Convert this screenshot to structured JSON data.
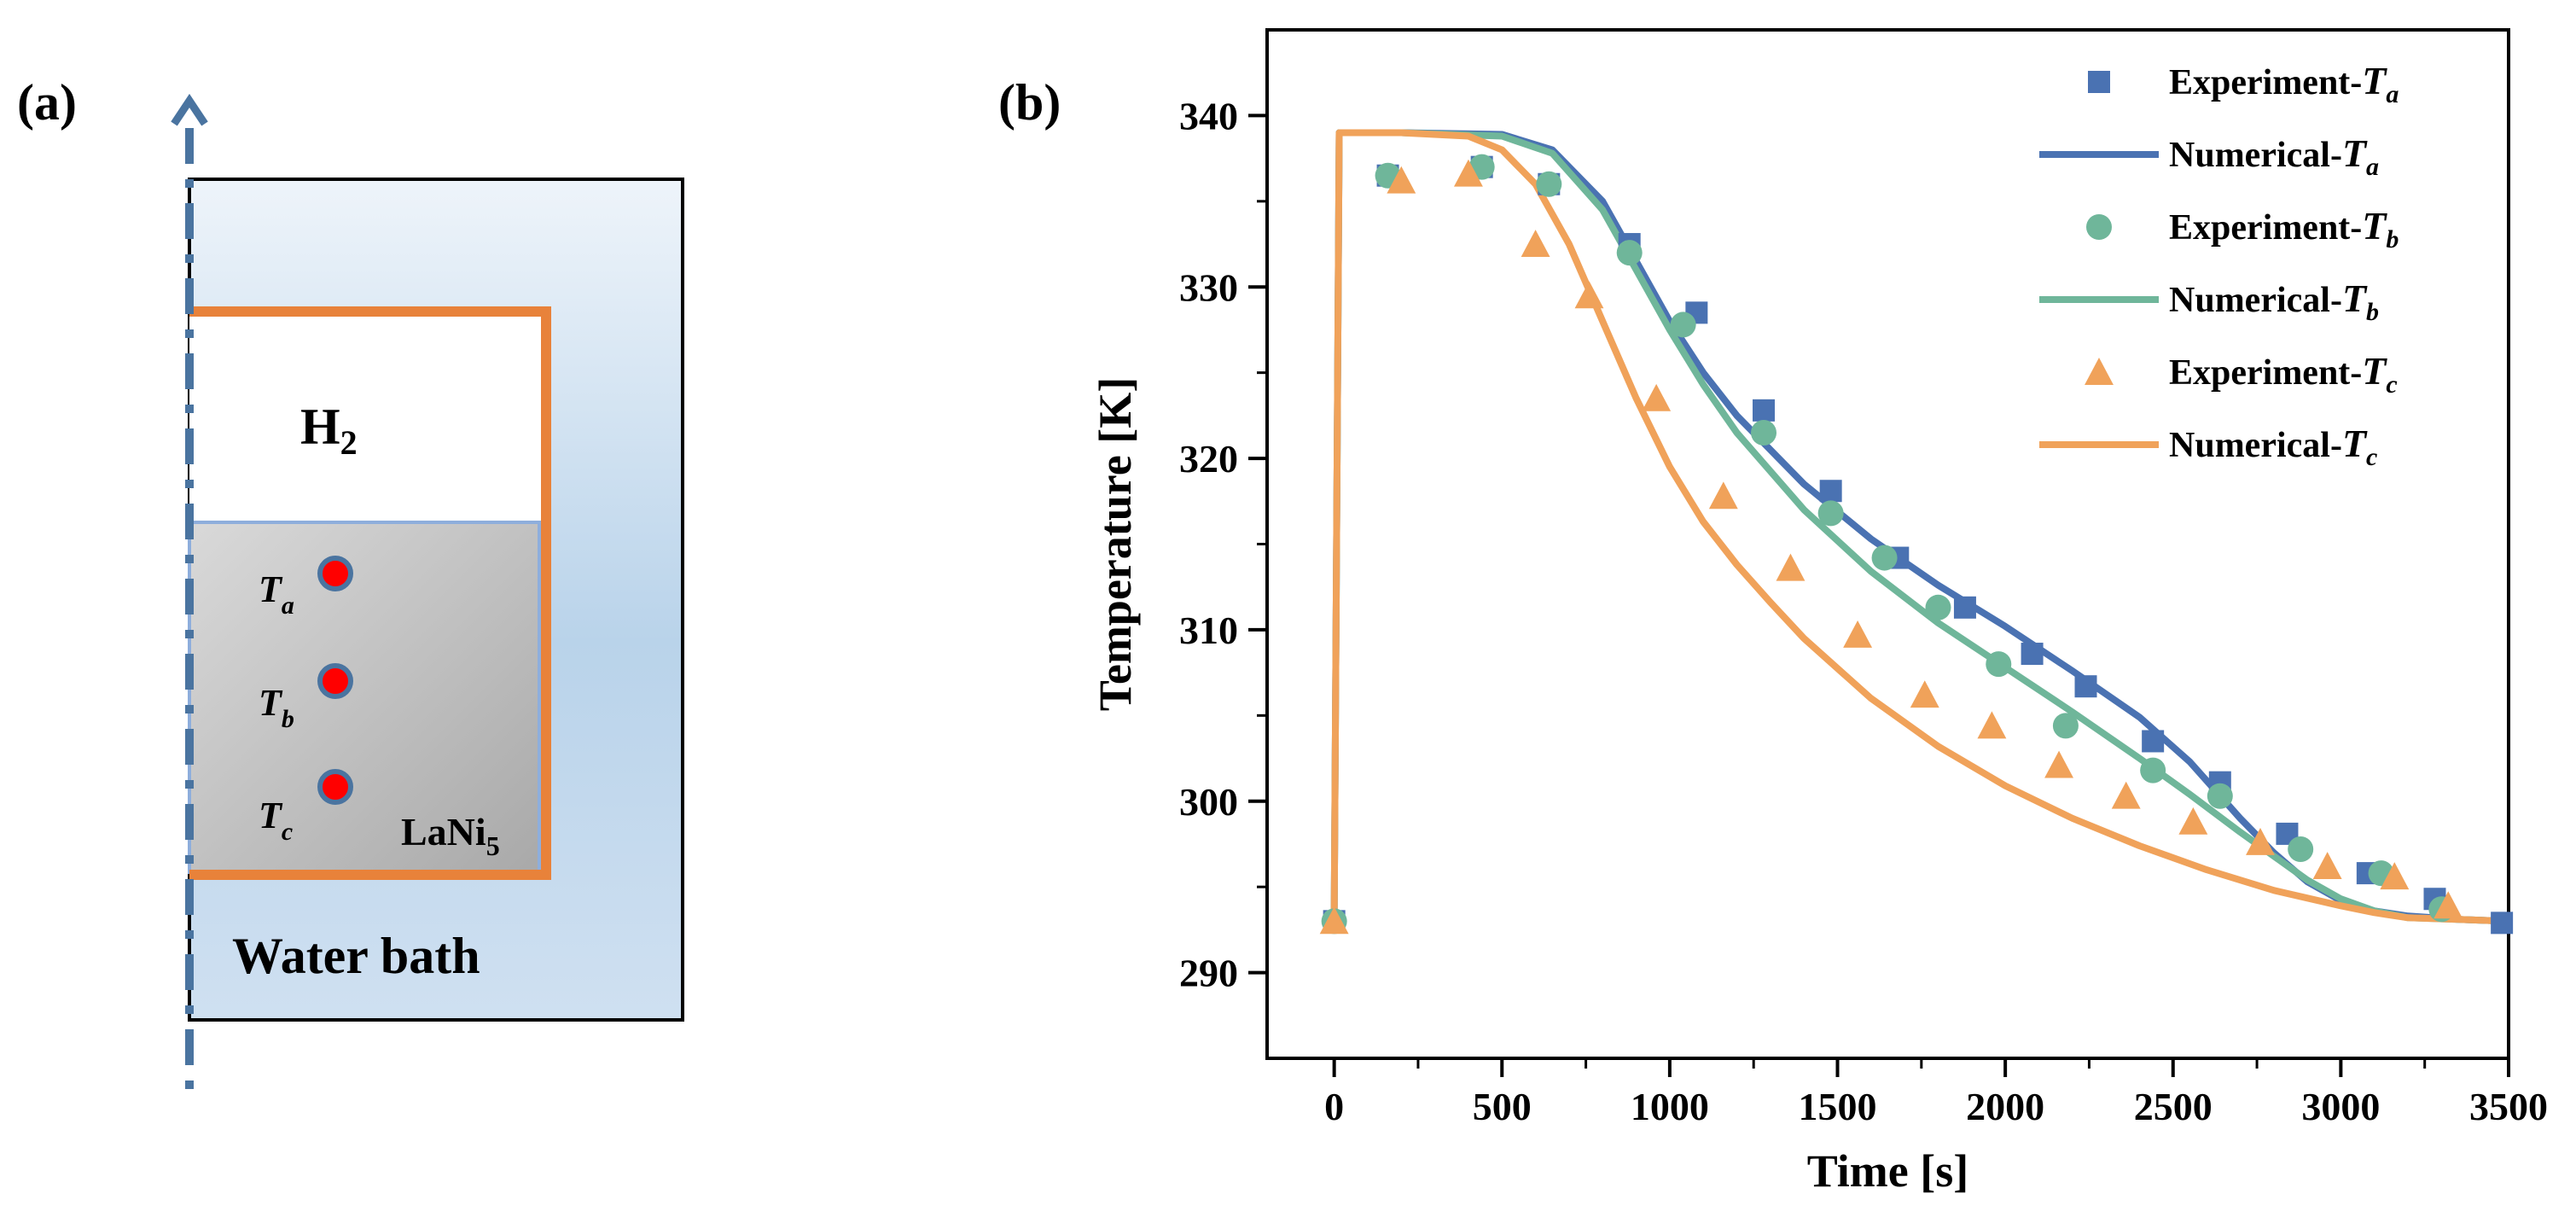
{
  "panel_a": {
    "label": "(a)",
    "gas": "H",
    "gas_sub": "2",
    "alloy": "LaNi",
    "alloy_sub": "5",
    "bath": "Water bath",
    "sensors": [
      {
        "sym": "T",
        "sub": "a"
      },
      {
        "sym": "T",
        "sub": "b"
      },
      {
        "sym": "T",
        "sub": "c"
      }
    ],
    "colors": {
      "vessel": "#e8823a",
      "axis": "#4a74a0",
      "sensor_fill": "#ff0000",
      "sensor_ring": "#4a74a0"
    }
  },
  "panel_b": {
    "label": "(b)"
  },
  "chart_data": {
    "type": "line+scatter",
    "xlabel": "Time [s]",
    "ylabel": "Temperature [K]",
    "xlim": [
      -200,
      3500
    ],
    "ylim": [
      285,
      345
    ],
    "xticks": [
      0,
      500,
      1000,
      1500,
      2000,
      2500,
      3000,
      3500
    ],
    "yticks": [
      290,
      300,
      310,
      320,
      330,
      340
    ],
    "grid": false,
    "legend_position": "top-right",
    "series": [
      {
        "name": "Experiment-",
        "sub": "a",
        "kind": "scatter",
        "marker": "square",
        "color": "#4a72b2",
        "x": [
          0,
          160,
          440,
          640,
          880,
          1080,
          1280,
          1480,
          1680,
          1880,
          2080,
          2240,
          2440,
          2640,
          2840,
          3080,
          3280,
          3480
        ],
        "y": [
          293,
          336.5,
          337,
          336,
          332.5,
          328.5,
          322.8,
          318.1,
          314.2,
          311.3,
          308.6,
          306.7,
          303.5,
          301.1,
          298.1,
          295.8,
          294.3,
          292.9
        ]
      },
      {
        "name": "Numerical-",
        "sub": "a",
        "kind": "line",
        "color": "#4a72b2",
        "x": [
          0,
          15,
          200,
          500,
          650,
          800,
          900,
          1000,
          1100,
          1200,
          1400,
          1600,
          1800,
          2000,
          2200,
          2400,
          2550,
          2700,
          2800,
          2900,
          3000,
          3100,
          3200,
          3350,
          3500
        ],
        "y": [
          293,
          339,
          339,
          338.9,
          338,
          335,
          331.5,
          328,
          325,
          322.5,
          318.5,
          315.3,
          312.6,
          310.2,
          307.6,
          304.9,
          302.3,
          299,
          297,
          295.3,
          294.2,
          293.6,
          293.3,
          293.1,
          293
        ]
      },
      {
        "name": "Experiment-",
        "sub": "b",
        "kind": "scatter",
        "marker": "circle",
        "color": "#6fb69a",
        "x": [
          0,
          160,
          440,
          640,
          880,
          1040,
          1280,
          1480,
          1640,
          1800,
          1980,
          2180,
          2440,
          2640,
          2880,
          3120,
          3300
        ],
        "y": [
          293,
          336.5,
          337,
          336,
          332,
          327.8,
          321.5,
          316.8,
          314.2,
          311.3,
          308,
          304.4,
          301.8,
          300.3,
          297.2,
          295.8,
          293.7
        ]
      },
      {
        "name": "Numerical-",
        "sub": "b",
        "kind": "line",
        "color": "#6fb69a",
        "x": [
          0,
          15,
          200,
          500,
          650,
          800,
          900,
          1000,
          1100,
          1200,
          1400,
          1600,
          1800,
          2000,
          2200,
          2400,
          2550,
          2700,
          2800,
          2900,
          3000,
          3100,
          3200,
          3350,
          3500
        ],
        "y": [
          293,
          339,
          339,
          338.8,
          337.8,
          334.5,
          331,
          327.5,
          324.3,
          321.5,
          317,
          313.4,
          310.4,
          307.8,
          305.2,
          302.5,
          300.4,
          298.2,
          296.8,
          295.4,
          294.3,
          293.6,
          293.2,
          293.1,
          293
        ]
      },
      {
        "name": "Experiment-",
        "sub": "c",
        "kind": "scatter",
        "marker": "triangle",
        "color": "#f0a25a",
        "x": [
          0,
          200,
          400,
          600,
          760,
          960,
          1160,
          1360,
          1560,
          1760,
          1960,
          2160,
          2360,
          2560,
          2760,
          2960,
          3160,
          3320
        ],
        "y": [
          293,
          336.2,
          336.6,
          332.5,
          329.5,
          323.5,
          317.8,
          313.6,
          309.7,
          306.2,
          304.4,
          302.1,
          300.3,
          298.8,
          297.6,
          296.2,
          295.6,
          293.9
        ]
      },
      {
        "name": "Numerical-",
        "sub": "c",
        "kind": "line",
        "color": "#f0a25a",
        "x": [
          0,
          15,
          200,
          400,
          500,
          600,
          700,
          800,
          900,
          1000,
          1100,
          1200,
          1300,
          1400,
          1600,
          1800,
          2000,
          2200,
          2400,
          2600,
          2800,
          3000,
          3100,
          3200,
          3350,
          3500
        ],
        "y": [
          293,
          339,
          339,
          338.8,
          338,
          336,
          332.5,
          328,
          323.5,
          319.5,
          316.3,
          313.8,
          311.6,
          309.5,
          306,
          303.2,
          300.9,
          299,
          297.4,
          296,
          294.8,
          293.9,
          293.5,
          293.2,
          293.1,
          293
        ]
      }
    ]
  }
}
